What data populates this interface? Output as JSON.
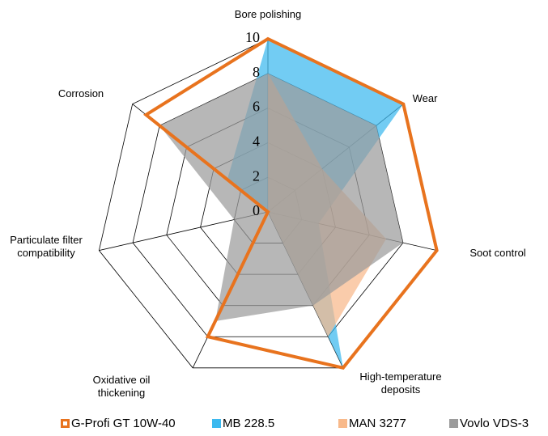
{
  "chart_data": {
    "type": "radar",
    "categories": [
      "Bore polishing",
      "Wear",
      "Soot control",
      "High-temperature deposits",
      "Oxidative oil thickening",
      "Particulate filter compatibility",
      "Corrosion"
    ],
    "series": [
      {
        "name": "G-Profi GT 10W-40",
        "color": "#e8731e",
        "values": [
          10,
          10,
          10,
          10,
          8,
          0,
          9
        ]
      },
      {
        "name": "MB 228.5",
        "color": "#3cb9ef",
        "values": [
          10,
          10,
          3,
          10,
          0,
          0,
          3
        ]
      },
      {
        "name": "MAN 3277",
        "color": "#f8b98a",
        "values": [
          8,
          4,
          7,
          8,
          0,
          0,
          0
        ]
      },
      {
        "name": "Vovlo VDS-3",
        "color": "#9b9b9b",
        "values": [
          8,
          8,
          8,
          6,
          7,
          2,
          8
        ]
      }
    ],
    "ylim": [
      0,
      10
    ],
    "yticks": [
      0,
      2,
      4,
      6,
      8,
      10
    ],
    "grid": true
  }
}
